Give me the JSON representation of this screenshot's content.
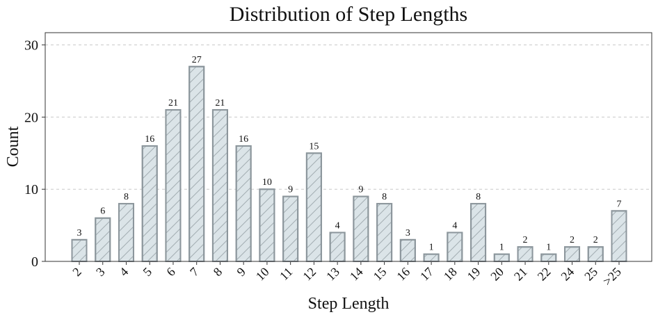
{
  "chart_data": {
    "type": "bar",
    "title": "Distribution of Step Lengths",
    "x_label": "Step Length",
    "y_label": "Count",
    "categories": [
      "2",
      "3",
      "4",
      "5",
      "6",
      "7",
      "8",
      "9",
      "10",
      "11",
      "12",
      "13",
      "14",
      "15",
      "16",
      "17",
      "18",
      "19",
      "20",
      "21",
      "22",
      "24",
      "25",
      ">25"
    ],
    "values": [
      3,
      6,
      8,
      16,
      21,
      27,
      21,
      16,
      10,
      9,
      15,
      4,
      9,
      8,
      3,
      1,
      4,
      8,
      1,
      2,
      1,
      2,
      2,
      7
    ],
    "color": "#dbe4e8",
    "edge_color": "#8c969c",
    "ylim": [
      0,
      31.7
    ],
    "yticks": [
      0,
      10,
      20,
      30
    ],
    "grid": true
  }
}
